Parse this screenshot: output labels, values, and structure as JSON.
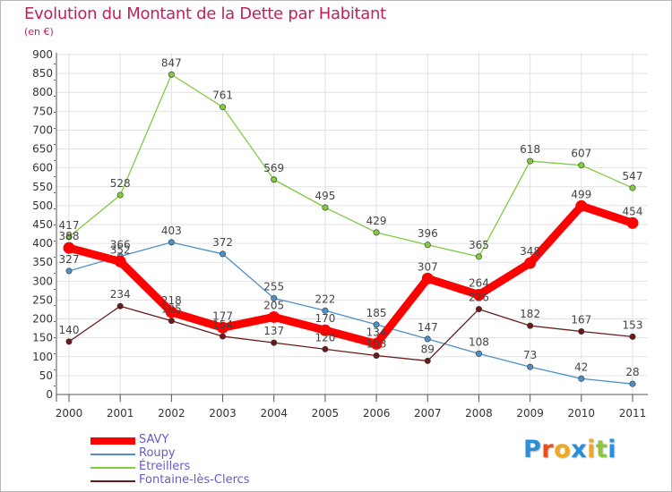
{
  "chart_data": {
    "type": "line",
    "title": "Evolution du Montant de la Dette par Habitant",
    "unit_label": "(en €)",
    "x": [
      "2000",
      "2001",
      "2002",
      "2003",
      "2004",
      "2005",
      "2006",
      "2007",
      "2008",
      "2009",
      "2010",
      "2011"
    ],
    "ylim": [
      0,
      900
    ],
    "yticks": [
      0,
      50,
      100,
      150,
      200,
      250,
      300,
      350,
      400,
      450,
      500,
      550,
      600,
      650,
      700,
      750,
      800,
      850,
      900
    ],
    "grid": true,
    "legend_position": "bottom-left",
    "series": [
      {
        "name": "SAVY",
        "values": [
          388,
          352,
          218,
          177,
          205,
          170,
          134,
          307,
          264,
          348,
          499,
          454
        ],
        "color": "#ff0000",
        "emphasis": true
      },
      {
        "name": "Roupy",
        "values": [
          327,
          366,
          403,
          372,
          255,
          222,
          185,
          147,
          108,
          73,
          42,
          28
        ],
        "color": "#4f8fc9"
      },
      {
        "name": "Étreillers",
        "values": [
          417,
          528,
          847,
          761,
          569,
          495,
          429,
          396,
          365,
          618,
          607,
          547
        ],
        "color": "#7fcc3f"
      },
      {
        "name": "Fontaine-lès-Clercs",
        "values": [
          140,
          234,
          195,
          154,
          137,
          120,
          103,
          89,
          226,
          182,
          167,
          153
        ],
        "color": "#6b1a1a"
      }
    ]
  },
  "brand": {
    "letters": [
      "P",
      "r",
      "o",
      "x",
      "i",
      "t",
      "i"
    ],
    "colors": [
      "#2a8fd8",
      "#e84e1b",
      "#f0a91b",
      "#2a8fd8",
      "#f0a91b",
      "#8dc63f",
      "#2a8fd8"
    ]
  }
}
